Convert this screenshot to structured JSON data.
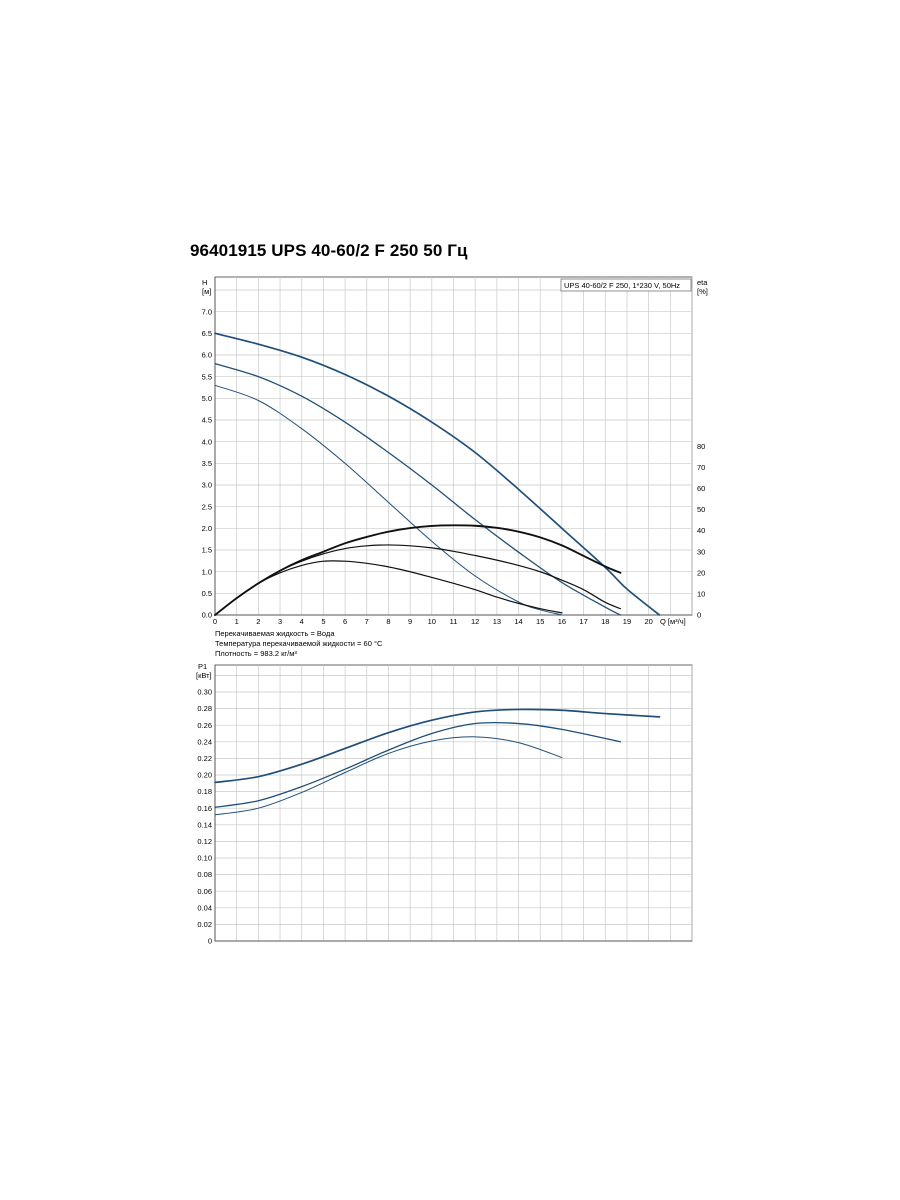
{
  "title": "96401915 UPS 40-60/2 F 250 50 Гц",
  "colors": {
    "grid": "#c9c9c9",
    "axis": "#555555",
    "curve_blue": "#1f4e7a",
    "curve_black": "#111111"
  },
  "legend_box": "UPS 40-60/2 F 250, 1*230 V, 50Hz",
  "notes": {
    "fluid": "Перекачиваемая жидкость = Вода",
    "temperature": "Температура перекачиваемой жидкости = 60 °C",
    "density": "Плотность = 983.2 кг/м³"
  },
  "chart_data": [
    {
      "type": "line",
      "ylabel": "H",
      "yunit": "[м]",
      "y2label": "eta",
      "y2unit": "[%]",
      "xlabel": "Q [м³/ч]",
      "xlim": [
        0,
        22
      ],
      "ylim": [
        0,
        7.8
      ],
      "y2lim": [
        0,
        80
      ],
      "x_ticks": [
        0,
        1,
        2,
        3,
        4,
        5,
        6,
        7,
        8,
        9,
        10,
        11,
        12,
        13,
        14,
        15,
        16,
        17,
        18,
        19,
        20
      ],
      "y_ticks": [
        "0.0",
        "0.5",
        "1.0",
        "1.5",
        "2.0",
        "2.5",
        "3.0",
        "3.5",
        "4.0",
        "4.5",
        "5.0",
        "5.5",
        "6.0",
        "6.5",
        "7.0"
      ],
      "y2_ticks": [
        0,
        10,
        20,
        30,
        40,
        50,
        60,
        70,
        80
      ],
      "series": [
        {
          "kind": "head",
          "speed": 3,
          "x": [
            0,
            2,
            4,
            6,
            8,
            10,
            12,
            14,
            16,
            18,
            19,
            20.5
          ],
          "y": [
            6.5,
            6.25,
            5.95,
            5.55,
            5.05,
            4.45,
            3.75,
            2.9,
            2.0,
            1.1,
            0.6,
            0.0
          ]
        },
        {
          "kind": "head",
          "speed": 2,
          "x": [
            0,
            2,
            4,
            6,
            8,
            10,
            12,
            14,
            16,
            18,
            18.7
          ],
          "y": [
            5.8,
            5.5,
            5.05,
            4.45,
            3.75,
            3.0,
            2.2,
            1.45,
            0.75,
            0.18,
            0.0
          ]
        },
        {
          "kind": "head",
          "speed": 1,
          "x": [
            0,
            2,
            4,
            6,
            8,
            10,
            12,
            14,
            15,
            16
          ],
          "y": [
            5.3,
            4.95,
            4.3,
            3.5,
            2.6,
            1.7,
            0.9,
            0.3,
            0.12,
            0.0
          ]
        },
        {
          "kind": "eta",
          "speed": 3,
          "x": [
            0,
            1,
            2,
            3,
            4,
            5,
            6,
            7,
            8,
            9,
            10,
            11,
            12,
            13,
            14,
            15,
            16,
            17,
            18,
            18.7
          ],
          "y": [
            0,
            8,
            15,
            21,
            26,
            30,
            34,
            37,
            39.5,
            41.2,
            42.2,
            42.5,
            42.3,
            41.3,
            39.5,
            36.8,
            33,
            28,
            23,
            20
          ]
        },
        {
          "kind": "eta",
          "speed": 2,
          "x": [
            0,
            1,
            2,
            3,
            4,
            5,
            6,
            7,
            8,
            9,
            10,
            11,
            12,
            13,
            14,
            15,
            16,
            17,
            18,
            18.7
          ],
          "y": [
            0,
            8,
            15,
            21,
            25.5,
            29,
            31.5,
            32.8,
            33.2,
            32.8,
            31.8,
            30.2,
            28.2,
            26,
            23.5,
            20.5,
            16.5,
            12,
            6,
            3
          ]
        },
        {
          "kind": "eta",
          "speed": 1,
          "x": [
            0,
            1,
            2,
            3,
            4,
            5,
            6,
            7,
            8,
            9,
            10,
            11,
            12,
            13,
            14,
            15,
            16
          ],
          "y": [
            0,
            8,
            15,
            20,
            23.5,
            25.5,
            25.5,
            24.5,
            22.8,
            20.5,
            17.8,
            15,
            12,
            8.5,
            5.5,
            3,
            1
          ]
        }
      ]
    },
    {
      "type": "line",
      "ylabel": "P1",
      "yunit": "[кВт]",
      "xlim": [
        0,
        22
      ],
      "ylim": [
        0,
        0.32
      ],
      "y_ticks": [
        "0",
        "0.02",
        "0.04",
        "0.06",
        "0.08",
        "0.10",
        "0.12",
        "0.14",
        "0.16",
        "0.18",
        "0.20",
        "0.22",
        "0.24",
        "0.26",
        "0.28",
        "0.30"
      ],
      "series": [
        {
          "kind": "power",
          "speed": 3,
          "x": [
            0,
            2,
            4,
            6,
            8,
            10,
            12,
            14,
            16,
            18,
            20.5
          ],
          "y": [
            0.191,
            0.198,
            0.213,
            0.232,
            0.251,
            0.266,
            0.276,
            0.279,
            0.278,
            0.274,
            0.27
          ]
        },
        {
          "kind": "power",
          "speed": 2,
          "x": [
            0,
            2,
            4,
            6,
            8,
            10,
            12,
            14,
            16,
            18.7
          ],
          "y": [
            0.161,
            0.169,
            0.186,
            0.207,
            0.23,
            0.25,
            0.262,
            0.262,
            0.255,
            0.24
          ]
        },
        {
          "kind": "power",
          "speed": 1,
          "x": [
            0,
            2,
            4,
            6,
            8,
            10,
            12,
            14,
            16
          ],
          "y": [
            0.152,
            0.16,
            0.179,
            0.203,
            0.226,
            0.241,
            0.246,
            0.239,
            0.221
          ]
        }
      ]
    }
  ]
}
